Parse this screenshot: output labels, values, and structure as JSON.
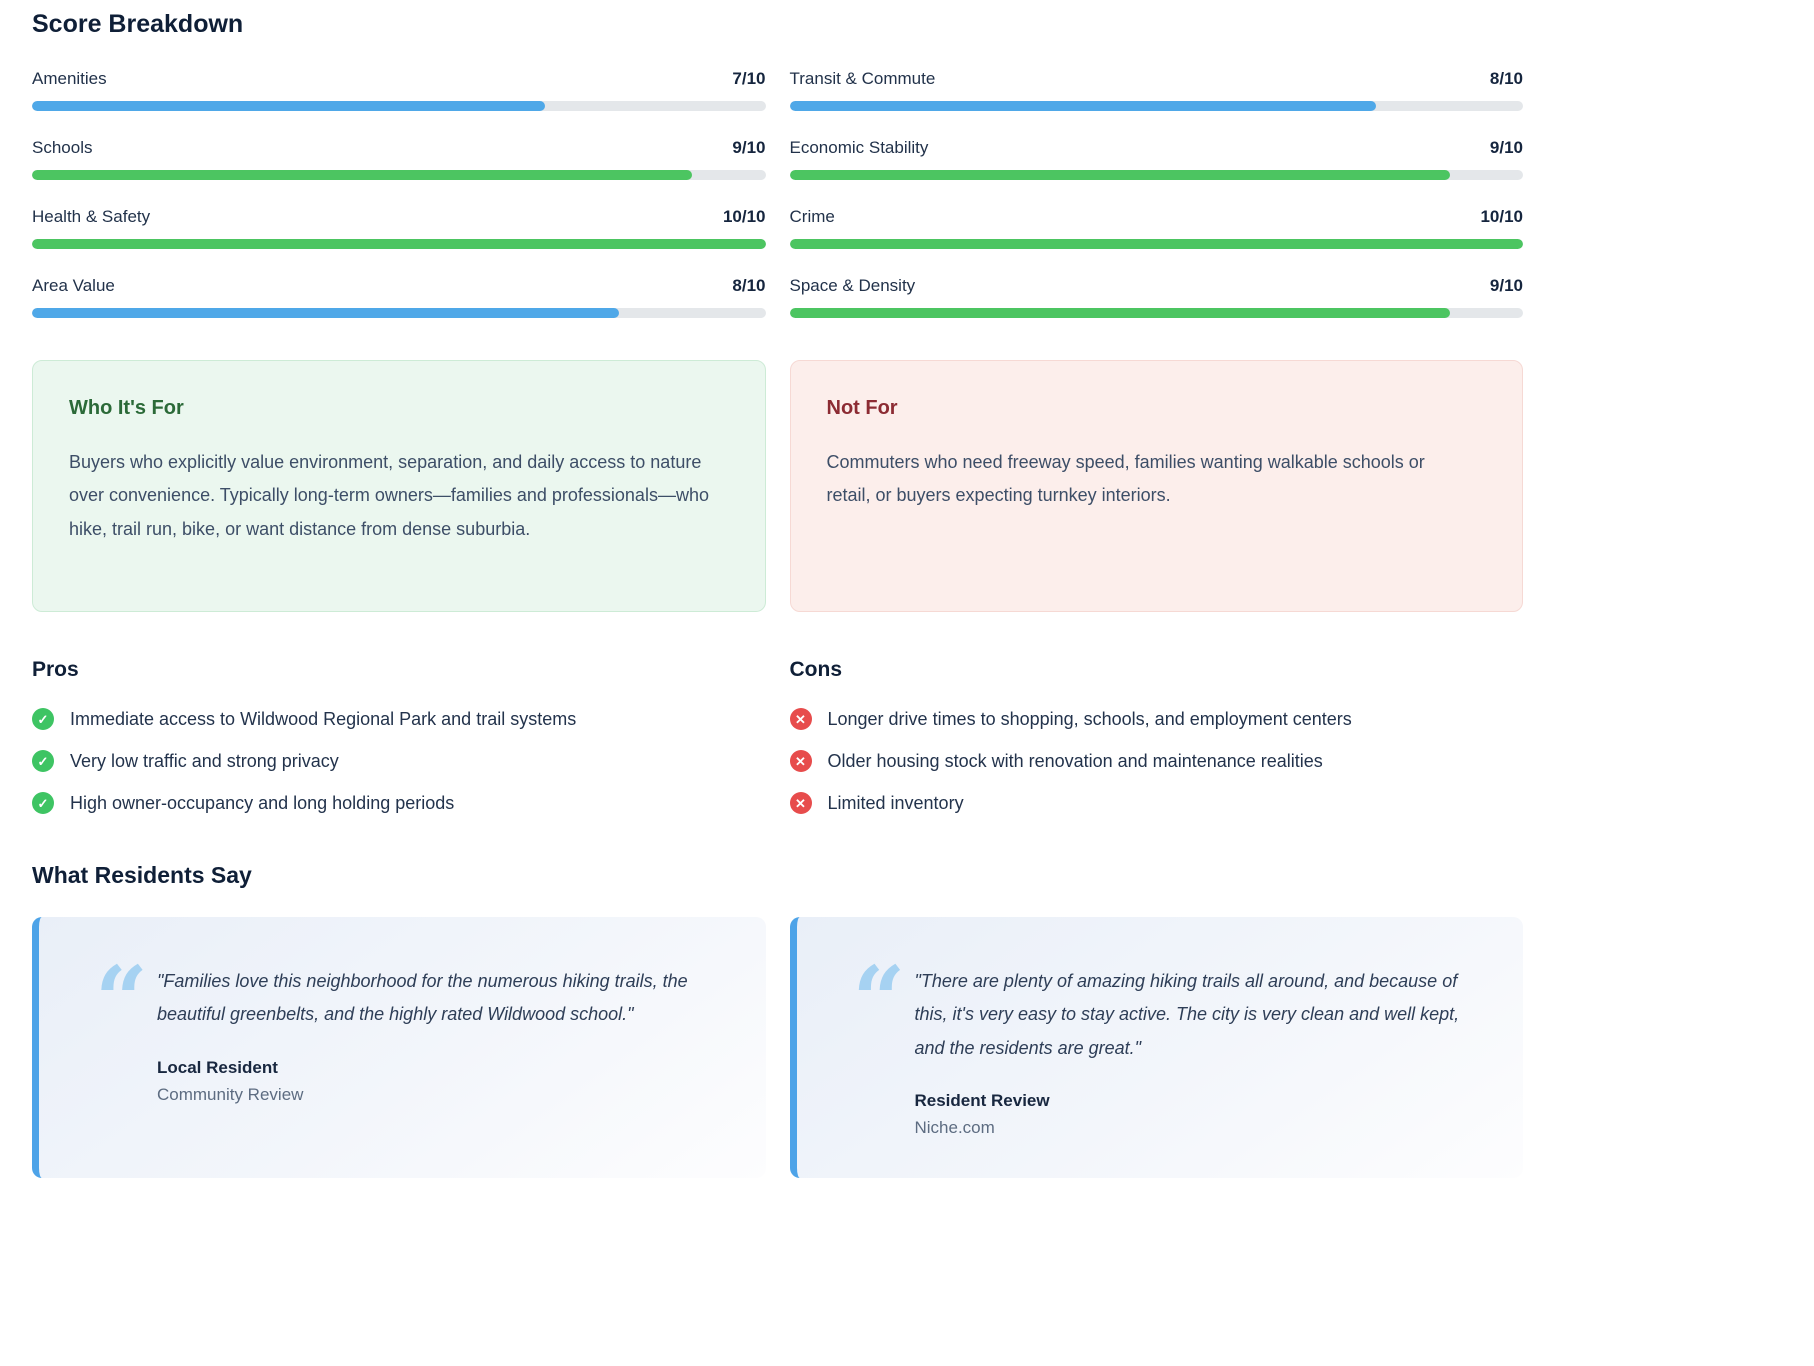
{
  "page": {
    "title": "Score Breakdown"
  },
  "colors": {
    "blue": "#4FA8E8",
    "green": "#4CC561",
    "track": "#e4e7ea",
    "pros_icon": "#3ec463",
    "cons_icon": "#e74c4c",
    "quote_accent": "#4da3e8"
  },
  "scores": {
    "left": [
      {
        "label": "Amenities",
        "value": "7/10",
        "score": 7,
        "max": 10,
        "color": "blue"
      },
      {
        "label": "Schools",
        "value": "9/10",
        "score": 9,
        "max": 10,
        "color": "green"
      },
      {
        "label": "Health & Safety",
        "value": "10/10",
        "score": 10,
        "max": 10,
        "color": "green"
      },
      {
        "label": "Area Value",
        "value": "8/10",
        "score": 8,
        "max": 10,
        "color": "blue"
      }
    ],
    "right": [
      {
        "label": "Transit & Commute",
        "value": "8/10",
        "score": 8,
        "max": 10,
        "color": "blue"
      },
      {
        "label": "Economic Stability",
        "value": "9/10",
        "score": 9,
        "max": 10,
        "color": "green"
      },
      {
        "label": "Crime",
        "value": "10/10",
        "score": 10,
        "max": 10,
        "color": "green"
      },
      {
        "label": "Space & Density",
        "value": "9/10",
        "score": 9,
        "max": 10,
        "color": "green"
      }
    ]
  },
  "fit": {
    "who": {
      "title": "Who It's For",
      "body": "Buyers who explicitly value environment, separation, and daily access to nature over convenience. Typically long-term owners—families and professionals—who hike, trail run, bike, or want distance from dense suburbia."
    },
    "not_for": {
      "title": "Not For",
      "body": "Commuters who need freeway speed, families wanting walkable schools or retail, or buyers expecting turnkey interiors."
    }
  },
  "pros": {
    "title": "Pros",
    "icon": "check-circle-icon",
    "items": [
      "Immediate access to Wildwood Regional Park and trail systems",
      "Very low traffic and strong privacy",
      "High owner-occupancy and long holding periods"
    ]
  },
  "cons": {
    "title": "Cons",
    "icon": "x-circle-icon",
    "items": [
      "Longer drive times to shopping, schools, and employment centers",
      "Older housing stock with renovation and maintenance realities",
      "Limited inventory"
    ]
  },
  "testimonials": {
    "title": "What Residents Say",
    "quote_glyph": "“",
    "check_glyph": "✓",
    "x_glyph": "✕",
    "cards": [
      {
        "quote": "\"Families love this neighborhood for the numerous hiking trails, the beautiful greenbelts, and the highly rated Wildwood school.\"",
        "author": "Local Resident",
        "source": "Community Review"
      },
      {
        "quote": "\"There are plenty of amazing hiking trails all around, and because of this, it's very easy to stay active. The city is very clean and well kept, and the residents are great.\"",
        "author": "Resident Review",
        "source": "Niche.com"
      }
    ]
  }
}
